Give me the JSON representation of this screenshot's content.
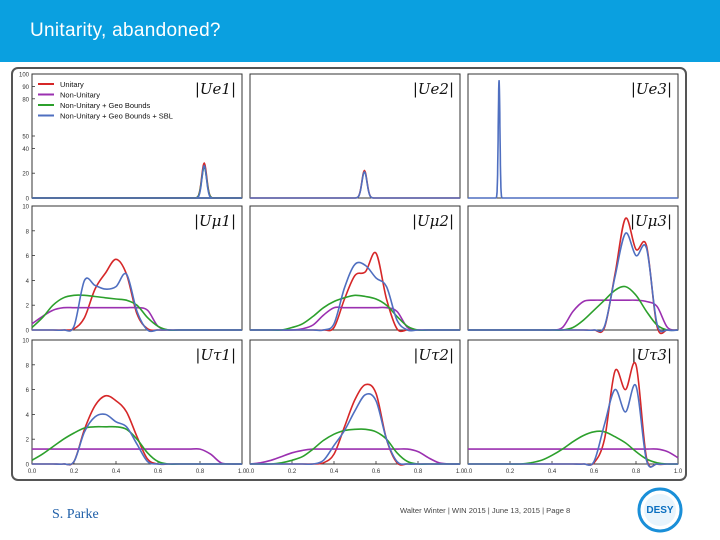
{
  "slide": {
    "title": "Unitarity, abandoned?",
    "credit": "S. Parke",
    "footer": "Walter Winter  |  WIN 2015 | June 13, 2015  |  Page 8",
    "logo_text": "DESY"
  },
  "colors": {
    "header": "#0aa0e0",
    "unitary": "#d62728",
    "non_unitary": "#9b30b0",
    "geo": "#2ca02c",
    "sbl": "#4f6fc0"
  },
  "chart_data": {
    "type": "line",
    "x": [
      0.0,
      0.05,
      0.1,
      0.15,
      0.2,
      0.25,
      0.3,
      0.35,
      0.4,
      0.45,
      0.5,
      0.55,
      0.6,
      0.65,
      0.7,
      0.75,
      0.8,
      0.85,
      0.9,
      0.95,
      1.0
    ],
    "xticks": [
      "0.0",
      "0.2",
      "0.4",
      "0.6",
      "0.8",
      "1.0"
    ],
    "legend": [
      "Unitary",
      "Non-Unitary",
      "Non-Unitary + Geo Bounds",
      "Non-Unitary + Geo Bounds + SBL"
    ],
    "legend_position": "top-left",
    "row_ylims": [
      [
        0,
        100
      ],
      [
        0,
        10
      ],
      [
        0,
        10
      ]
    ],
    "row_yticks": [
      [
        "0",
        "20",
        "40",
        "50",
        "80",
        "90",
        "100"
      ],
      [
        "0",
        "2",
        "4",
        "6",
        "8",
        "10"
      ],
      [
        "0",
        "2",
        "4",
        "6",
        "8",
        "10"
      ]
    ],
    "panels": [
      {
        "label": "|Ue1|",
        "row": 0,
        "col": 0,
        "series": [
          {
            "name": "Unitary",
            "values": [
              0,
              0,
              0,
              0,
              0,
              0,
              0,
              0,
              0,
              0,
              0,
              0,
              0,
              0,
              0,
              0,
              0,
              0,
              0,
              0,
              0
            ]
          },
          {
            "name": "Non-Unitary",
            "values": [
              0,
              0,
              0,
              0,
              0,
              0,
              0,
              0,
              0,
              0,
              0,
              0,
              0,
              0,
              0,
              0,
              0,
              0,
              0,
              0,
              0
            ]
          },
          {
            "name": "Non-Unitary + Geo Bounds",
            "values": [
              0,
              0,
              0,
              0,
              0,
              0,
              0,
              0,
              0,
              0,
              0,
              0,
              0,
              0,
              0,
              0,
              0,
              0,
              0,
              0,
              0
            ]
          },
          {
            "name": "Non-Unitary + Geo Bounds + SBL",
            "values": [
              0,
              0,
              0,
              0,
              0,
              0,
              0,
              0,
              0,
              0,
              0,
              0,
              0,
              0,
              0,
              0,
              0,
              0,
              0,
              0,
              0
            ]
          }
        ],
        "peaks": [
          {
            "name": "Unitary",
            "center": 0.82,
            "width": 0.012,
            "height": 28
          },
          {
            "name": "Non-Unitary + Geo Bounds",
            "center": 0.82,
            "width": 0.012,
            "height": 25
          },
          {
            "name": "Non-Unitary + Geo Bounds + SBL",
            "center": 0.82,
            "width": 0.011,
            "height": 26
          }
        ]
      },
      {
        "label": "|Ue2|",
        "row": 0,
        "col": 1,
        "series": [],
        "peaks": [
          {
            "name": "Unitary",
            "center": 0.545,
            "width": 0.012,
            "height": 22
          },
          {
            "name": "Non-Unitary + Geo Bounds + SBL",
            "center": 0.545,
            "width": 0.012,
            "height": 21
          }
        ]
      },
      {
        "label": "|Ue3|",
        "row": 0,
        "col": 2,
        "series": [],
        "peaks": [
          {
            "name": "Non-Unitary + Geo Bounds + SBL",
            "center": 0.148,
            "width": 0.004,
            "height": 95
          }
        ]
      },
      {
        "label": "|Uμ1|",
        "row": 1,
        "col": 0,
        "series": [
          {
            "name": "Unitary",
            "values": [
              0,
              0,
              0,
              0,
              0.1,
              1.0,
              3.3,
              4.6,
              5.7,
              4.5,
              1.3,
              0.1,
              0,
              0,
              0,
              0,
              0,
              0,
              0,
              0,
              0
            ]
          },
          {
            "name": "Non-Unitary",
            "values": [
              0.5,
              1.1,
              1.6,
              1.8,
              1.8,
              1.8,
              1.8,
              1.8,
              1.8,
              1.8,
              1.8,
              1.6,
              0.3,
              0,
              0,
              0,
              0,
              0,
              0,
              0,
              0
            ]
          },
          {
            "name": "Non-Unitary + Geo Bounds",
            "values": [
              0.2,
              1.0,
              2.0,
              2.6,
              2.8,
              2.8,
              2.7,
              2.6,
              2.5,
              2.4,
              2.0,
              1.0,
              0.3,
              0,
              0,
              0,
              0,
              0,
              0,
              0,
              0
            ]
          },
          {
            "name": "Non-Unitary + Geo Bounds + SBL",
            "values": [
              0,
              0,
              0,
              0,
              0.3,
              4.0,
              3.6,
              3.3,
              3.5,
              4.5,
              1.5,
              0,
              0,
              0,
              0,
              0,
              0,
              0,
              0,
              0,
              0
            ]
          }
        ]
      },
      {
        "label": "|Uμ2|",
        "row": 1,
        "col": 1,
        "series": [
          {
            "name": "Unitary",
            "values": [
              0,
              0,
              0,
              0,
              0,
              0,
              0,
              0,
              0.2,
              2.5,
              4.4,
              4.7,
              6.2,
              2.5,
              0.1,
              0,
              0,
              0,
              0,
              0,
              0
            ]
          },
          {
            "name": "Non-Unitary",
            "values": [
              0,
              0,
              0,
              0,
              0,
              0.1,
              0.4,
              1.2,
              1.8,
              1.8,
              1.8,
              1.8,
              1.8,
              1.8,
              1.5,
              0.2,
              0,
              0,
              0,
              0,
              0
            ]
          },
          {
            "name": "Non-Unitary + Geo Bounds",
            "values": [
              0,
              0,
              0,
              0,
              0.2,
              0.5,
              1.1,
              1.8,
              2.3,
              2.6,
              2.8,
              2.7,
              2.5,
              2.0,
              1.1,
              0.3,
              0,
              0,
              0,
              0,
              0
            ]
          },
          {
            "name": "Non-Unitary + Geo Bounds + SBL",
            "values": [
              0,
              0,
              0,
              0,
              0,
              0,
              0,
              0,
              0.5,
              3.4,
              5.3,
              5.2,
              4.2,
              3.5,
              0.8,
              0,
              0,
              0,
              0,
              0,
              0
            ]
          }
        ]
      },
      {
        "label": "|Uμ3|",
        "row": 1,
        "col": 2,
        "series": [
          {
            "name": "Unitary",
            "values": [
              0,
              0,
              0,
              0,
              0,
              0,
              0,
              0,
              0,
              0,
              0,
              0,
              0,
              0.2,
              4.5,
              9.0,
              6.5,
              6.8,
              0.3,
              0,
              0
            ]
          },
          {
            "name": "Non-Unitary",
            "values": [
              0,
              0,
              0,
              0,
              0,
              0,
              0,
              0,
              0,
              0.2,
              1.5,
              2.3,
              2.4,
              2.4,
              2.4,
              2.4,
              2.4,
              2.3,
              1.9,
              0.2,
              0
            ]
          },
          {
            "name": "Non-Unitary + Geo Bounds",
            "values": [
              0,
              0,
              0,
              0,
              0,
              0,
              0,
              0,
              0,
              0,
              0.2,
              0.8,
              1.6,
              2.4,
              3.2,
              3.5,
              2.8,
              1.5,
              0.4,
              0,
              0
            ]
          },
          {
            "name": "Non-Unitary + Geo Bounds + SBL",
            "values": [
              0,
              0,
              0,
              0,
              0,
              0,
              0,
              0,
              0,
              0,
              0,
              0,
              0,
              0.3,
              4.3,
              7.8,
              6.0,
              6.6,
              0.5,
              0,
              0
            ]
          }
        ]
      },
      {
        "label": "|Uτ1|",
        "row": 2,
        "col": 0,
        "series": [
          {
            "name": "Unitary",
            "values": [
              0,
              0,
              0,
              0,
              0.2,
              2.8,
              4.7,
              5.5,
              5.1,
              4.2,
              2.2,
              0.4,
              0,
              0,
              0,
              0,
              0,
              0,
              0,
              0,
              0
            ]
          },
          {
            "name": "Non-Unitary",
            "values": [
              1.2,
              1.2,
              1.2,
              1.2,
              1.2,
              1.2,
              1.2,
              1.2,
              1.2,
              1.2,
              1.2,
              1.2,
              1.2,
              1.2,
              1.2,
              1.2,
              1.2,
              0.8,
              0.1,
              0,
              0
            ]
          },
          {
            "name": "Non-Unitary + Geo Bounds",
            "values": [
              0.3,
              0.8,
              1.4,
              2.0,
              2.5,
              2.9,
              3.0,
              3.0,
              3.0,
              2.8,
              2.0,
              0.9,
              0.2,
              0,
              0,
              0,
              0,
              0,
              0,
              0,
              0
            ]
          },
          {
            "name": "Non-Unitary + Geo Bounds + SBL",
            "values": [
              0,
              0,
              0,
              0,
              0.2,
              2.6,
              3.8,
              4.0,
              3.4,
              3.0,
              1.6,
              0.2,
              0,
              0,
              0,
              0,
              0,
              0,
              0,
              0,
              0
            ]
          }
        ]
      },
      {
        "label": "|Uτ2|",
        "row": 2,
        "col": 1,
        "series": [
          {
            "name": "Unitary",
            "values": [
              0,
              0,
              0,
              0,
              0,
              0,
              0,
              0.1,
              0.8,
              3.0,
              5.2,
              6.4,
              5.7,
              2.0,
              0.1,
              0,
              0,
              0,
              0,
              0,
              0
            ]
          },
          {
            "name": "Non-Unitary",
            "values": [
              0,
              0.1,
              0.3,
              0.6,
              0.9,
              1.1,
              1.2,
              1.2,
              1.2,
              1.2,
              1.2,
              1.2,
              1.2,
              1.2,
              1.2,
              1.2,
              1.0,
              0.5,
              0.1,
              0,
              0
            ]
          },
          {
            "name": "Non-Unitary + Geo Bounds",
            "values": [
              0,
              0,
              0,
              0.1,
              0.3,
              0.6,
              1.2,
              1.9,
              2.4,
              2.7,
              2.8,
              2.8,
              2.6,
              2.0,
              0.9,
              0.2,
              0,
              0,
              0,
              0,
              0
            ]
          },
          {
            "name": "Non-Unitary + Geo Bounds + SBL",
            "values": [
              0,
              0,
              0,
              0,
              0,
              0,
              0,
              0.3,
              1.5,
              2.7,
              4.3,
              5.6,
              5.1,
              2.0,
              0.2,
              0,
              0,
              0,
              0,
              0,
              0
            ]
          }
        ]
      },
      {
        "label": "|Uτ3|",
        "row": 2,
        "col": 2,
        "series": [
          {
            "name": "Unitary",
            "values": [
              0,
              0,
              0,
              0,
              0,
              0,
              0,
              0,
              0,
              0,
              0,
              0,
              0.1,
              2.0,
              7.5,
              6.0,
              8.0,
              0.5,
              0,
              0,
              0
            ]
          },
          {
            "name": "Non-Unitary",
            "values": [
              1.2,
              1.2,
              1.2,
              1.2,
              1.2,
              1.2,
              1.2,
              1.2,
              1.2,
              1.2,
              1.2,
              1.2,
              1.2,
              1.2,
              1.2,
              1.2,
              1.2,
              1.2,
              1.2,
              1.0,
              0.5
            ]
          },
          {
            "name": "Non-Unitary + Geo Bounds",
            "values": [
              0,
              0,
              0,
              0,
              0,
              0,
              0.1,
              0.3,
              0.7,
              1.2,
              1.8,
              2.3,
              2.6,
              2.6,
              2.2,
              1.7,
              1.0,
              0.4,
              0.1,
              0,
              0
            ]
          },
          {
            "name": "Non-Unitary + Geo Bounds + SBL",
            "values": [
              0,
              0,
              0,
              0,
              0,
              0,
              0,
              0,
              0,
              0,
              0,
              0,
              0.2,
              3.2,
              6.0,
              4.2,
              6.3,
              0.3,
              0,
              0,
              0
            ]
          }
        ]
      }
    ]
  }
}
